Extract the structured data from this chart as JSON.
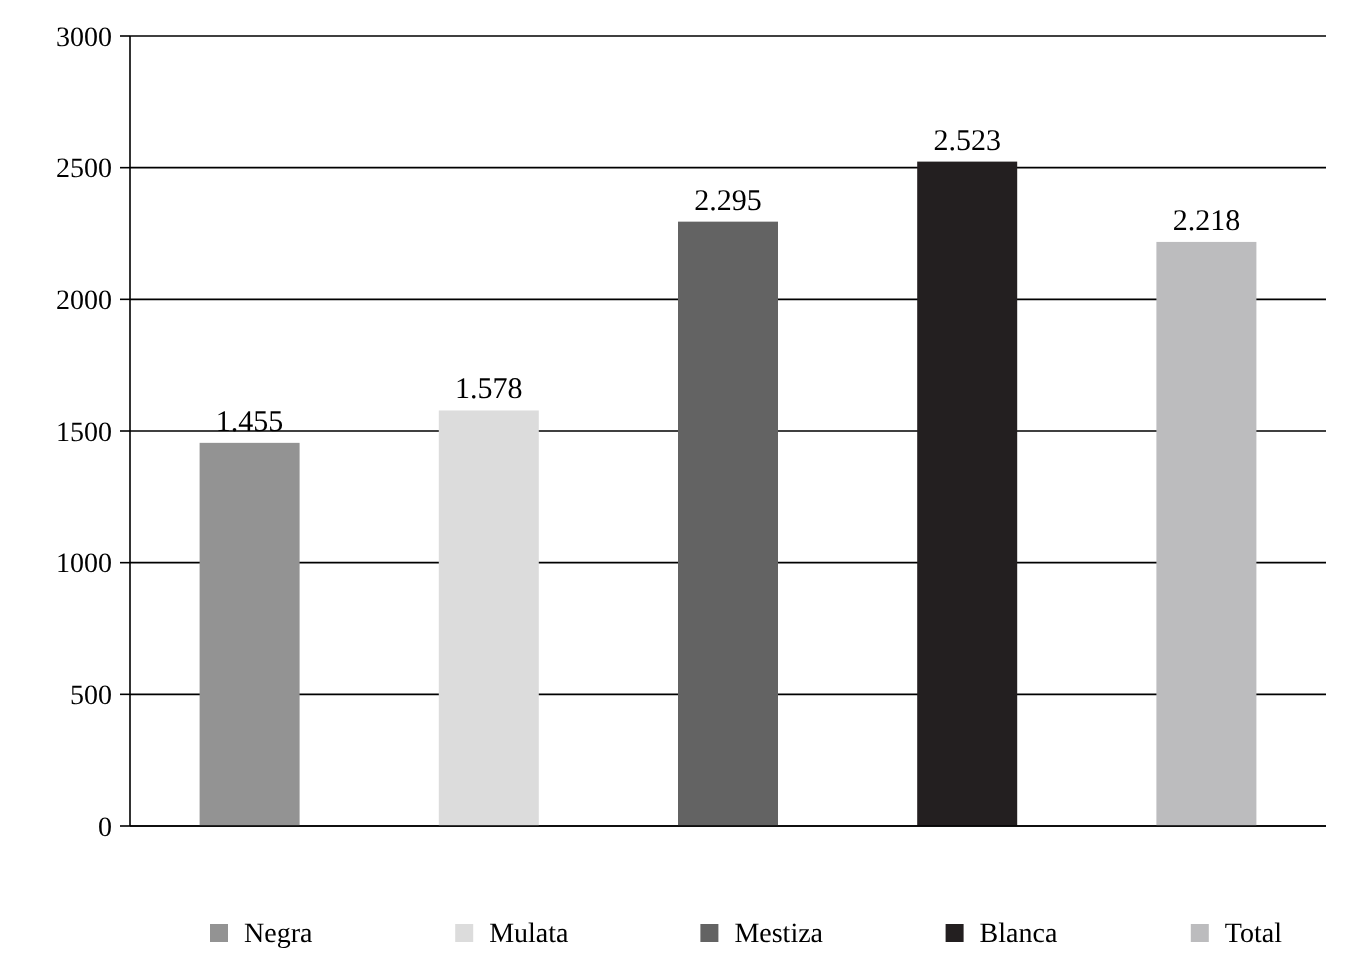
{
  "chart_data": {
    "type": "bar",
    "categories": [
      null,
      null,
      null,
      null,
      null
    ],
    "series": [
      {
        "name": "Negra",
        "color": "#939393",
        "values": [
          1455,
          null,
          null,
          null,
          null
        ],
        "value_labels": [
          "1.455",
          null,
          null,
          null,
          null
        ]
      },
      {
        "name": "Mulata",
        "color": "#dcdcdc",
        "values": [
          null,
          1578,
          null,
          null,
          null
        ],
        "value_labels": [
          null,
          "1.578",
          null,
          null,
          null
        ]
      },
      {
        "name": "Mestiza",
        "color": "#636363",
        "values": [
          null,
          null,
          2295,
          null,
          null
        ],
        "value_labels": [
          null,
          null,
          "2.295",
          null,
          null
        ]
      },
      {
        "name": "Blanca",
        "color": "#231f20",
        "values": [
          null,
          null,
          null,
          2523,
          null
        ],
        "value_labels": [
          null,
          null,
          null,
          "2.523",
          null
        ]
      },
      {
        "name": "Total",
        "color": "#bcbcbe",
        "values": [
          null,
          null,
          null,
          null,
          2218
        ],
        "value_labels": [
          null,
          null,
          null,
          null,
          "2.218"
        ]
      }
    ],
    "ylim": [
      0,
      3000
    ],
    "yticks": [
      0,
      500,
      1000,
      1500,
      2000,
      2500,
      3000
    ],
    "grid": "y",
    "legend": "bottom"
  }
}
